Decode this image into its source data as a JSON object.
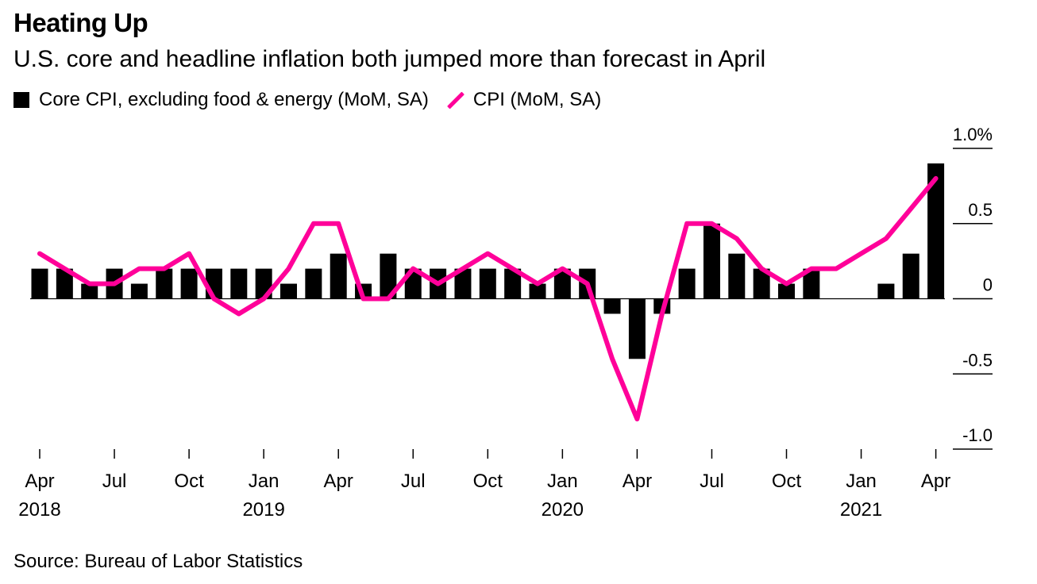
{
  "title": "Heating Up",
  "subtitle": "U.S. core and headline inflation both jumped more than forecast in April",
  "legend": {
    "core": "Core CPI, excluding food & energy (MoM, SA)",
    "cpi": "CPI (MoM, SA)"
  },
  "source": "Source: Bureau of Labor Statistics",
  "colors": {
    "core": "#000000",
    "cpi": "#ff0099"
  },
  "chart_data": {
    "type": "bar",
    "x": [
      "2018-04",
      "2018-05",
      "2018-06",
      "2018-07",
      "2018-08",
      "2018-09",
      "2018-10",
      "2018-11",
      "2018-12",
      "2019-01",
      "2019-02",
      "2019-03",
      "2019-04",
      "2019-05",
      "2019-06",
      "2019-07",
      "2019-08",
      "2019-09",
      "2019-10",
      "2019-11",
      "2019-12",
      "2020-01",
      "2020-02",
      "2020-03",
      "2020-04",
      "2020-05",
      "2020-06",
      "2020-07",
      "2020-08",
      "2020-09",
      "2020-10",
      "2020-11",
      "2020-12",
      "2021-01",
      "2021-02",
      "2021-03",
      "2021-04"
    ],
    "series": [
      {
        "name": "Core CPI, excluding food & energy (MoM, SA)",
        "type": "bar",
        "values": [
          0.2,
          0.2,
          0.1,
          0.2,
          0.1,
          0.2,
          0.2,
          0.2,
          0.2,
          0.2,
          0.1,
          0.2,
          0.3,
          0.1,
          0.3,
          0.2,
          0.2,
          0.2,
          0.2,
          0.2,
          0.1,
          0.2,
          0.2,
          -0.1,
          -0.4,
          -0.1,
          0.2,
          0.5,
          0.3,
          0.2,
          0.1,
          0.2,
          0.0,
          0.0,
          0.1,
          0.3,
          0.9
        ]
      },
      {
        "name": "CPI (MoM, SA)",
        "type": "line",
        "values": [
          0.3,
          0.2,
          0.1,
          0.1,
          0.2,
          0.2,
          0.3,
          0.0,
          -0.1,
          0.0,
          0.2,
          0.5,
          0.5,
          0.0,
          0.0,
          0.2,
          0.1,
          0.2,
          0.3,
          0.2,
          0.1,
          0.2,
          0.1,
          -0.4,
          -0.8,
          -0.1,
          0.5,
          0.5,
          0.4,
          0.2,
          0.1,
          0.2,
          0.2,
          0.3,
          0.4,
          0.6,
          0.8
        ]
      }
    ],
    "ylim": [
      -1.0,
      1.0
    ],
    "yticks": [
      {
        "value": 1.0,
        "label": "1.0%"
      },
      {
        "value": 0.5,
        "label": "0.5"
      },
      {
        "value": 0,
        "label": "0"
      },
      {
        "value": -0.5,
        "label": "-0.5"
      },
      {
        "value": -1.0,
        "label": "-1.0"
      }
    ],
    "xticks": [
      {
        "index": 0,
        "label": "Apr",
        "year": "2018"
      },
      {
        "index": 3,
        "label": "Jul",
        "year": ""
      },
      {
        "index": 6,
        "label": "Oct",
        "year": ""
      },
      {
        "index": 9,
        "label": "Jan",
        "year": "2019"
      },
      {
        "index": 12,
        "label": "Apr",
        "year": ""
      },
      {
        "index": 15,
        "label": "Jul",
        "year": ""
      },
      {
        "index": 18,
        "label": "Oct",
        "year": ""
      },
      {
        "index": 21,
        "label": "Jan",
        "year": "2020"
      },
      {
        "index": 24,
        "label": "Apr",
        "year": ""
      },
      {
        "index": 27,
        "label": "Jul",
        "year": ""
      },
      {
        "index": 30,
        "label": "Oct",
        "year": ""
      },
      {
        "index": 33,
        "label": "Jan",
        "year": "2021"
      },
      {
        "index": 36,
        "label": "Apr",
        "year": ""
      }
    ],
    "grid": false,
    "legend_position": "top-left"
  }
}
